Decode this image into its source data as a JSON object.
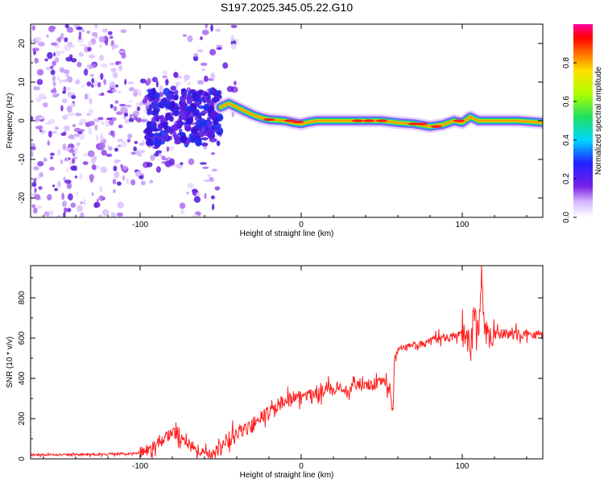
{
  "title": "S197.2025.345.05.22.G10",
  "chart_data": [
    {
      "type": "heatmap",
      "title": "S197.2025.345.05.22.G10",
      "xlabel": "Height of straight line (km)",
      "ylabel": "Frequency (Hz)",
      "xlim": [
        -168,
        150
      ],
      "ylim": [
        -25,
        25
      ],
      "xticks": [
        -100,
        0,
        100
      ],
      "yticks": [
        -20,
        -10,
        0,
        10,
        20
      ],
      "colorbar": {
        "label": "Normalized spectral amplitude",
        "range": [
          0,
          1
        ],
        "ticks": [
          0.0,
          0.2,
          0.4,
          0.6,
          0.8
        ]
      },
      "ridge": [
        {
          "x": -50,
          "y": 3.5
        },
        {
          "x": -45,
          "y": 4.5
        },
        {
          "x": -40,
          "y": 3.5
        },
        {
          "x": -35,
          "y": 2.5
        },
        {
          "x": -30,
          "y": 1.5
        },
        {
          "x": -25,
          "y": 0.8
        },
        {
          "x": -20,
          "y": 0.3
        },
        {
          "x": -10,
          "y": 0.0
        },
        {
          "x": -5,
          "y": -0.5
        },
        {
          "x": 0,
          "y": -0.8
        },
        {
          "x": 5,
          "y": -0.3
        },
        {
          "x": 10,
          "y": 0.0
        },
        {
          "x": 20,
          "y": 0.0
        },
        {
          "x": 30,
          "y": 0.0
        },
        {
          "x": 40,
          "y": 0.0
        },
        {
          "x": 50,
          "y": 0.0
        },
        {
          "x": 60,
          "y": -0.5
        },
        {
          "x": 70,
          "y": -0.8
        },
        {
          "x": 80,
          "y": -1.5
        },
        {
          "x": 88,
          "y": -1.0
        },
        {
          "x": 95,
          "y": 0.0
        },
        {
          "x": 100,
          "y": -0.5
        },
        {
          "x": 105,
          "y": 1.0
        },
        {
          "x": 110,
          "y": 0.0
        },
        {
          "x": 120,
          "y": 0.0
        },
        {
          "x": 135,
          "y": 0.0
        },
        {
          "x": 150,
          "y": -0.5
        }
      ]
    },
    {
      "type": "line",
      "xlabel": "Height of straight line (km)",
      "ylabel": "SNR (10 * v/v)",
      "xlim": [
        -168,
        150
      ],
      "ylim": [
        0,
        960
      ],
      "xticks": [
        -100,
        0,
        100
      ],
      "yticks": [
        0,
        200,
        400,
        600,
        800
      ],
      "color": "#ff2020",
      "series": [
        {
          "name": "SNR",
          "x": [
            -168,
            -150,
            -130,
            -110,
            -100,
            -95,
            -90,
            -85,
            -80,
            -75,
            -70,
            -65,
            -60,
            -55,
            -50,
            -45,
            -40,
            -35,
            -30,
            -25,
            -20,
            -15,
            -10,
            -5,
            0,
            5,
            10,
            15,
            20,
            25,
            30,
            35,
            40,
            45,
            50,
            55,
            56,
            57,
            58,
            60,
            65,
            70,
            75,
            80,
            85,
            90,
            95,
            100,
            103,
            105,
            107,
            110,
            112,
            114,
            116,
            120,
            130,
            140,
            150
          ],
          "y": [
            20,
            20,
            22,
            25,
            30,
            45,
            70,
            100,
            130,
            110,
            80,
            50,
            30,
            25,
            50,
            90,
            120,
            150,
            170,
            200,
            230,
            260,
            290,
            300,
            310,
            320,
            330,
            340,
            350,
            355,
            350,
            360,
            360,
            370,
            375,
            370,
            280,
            230,
            520,
            540,
            550,
            560,
            570,
            580,
            600,
            600,
            610,
            620,
            600,
            560,
            720,
            600,
            900,
            640,
            620,
            620,
            620,
            620,
            620
          ]
        }
      ]
    }
  ]
}
